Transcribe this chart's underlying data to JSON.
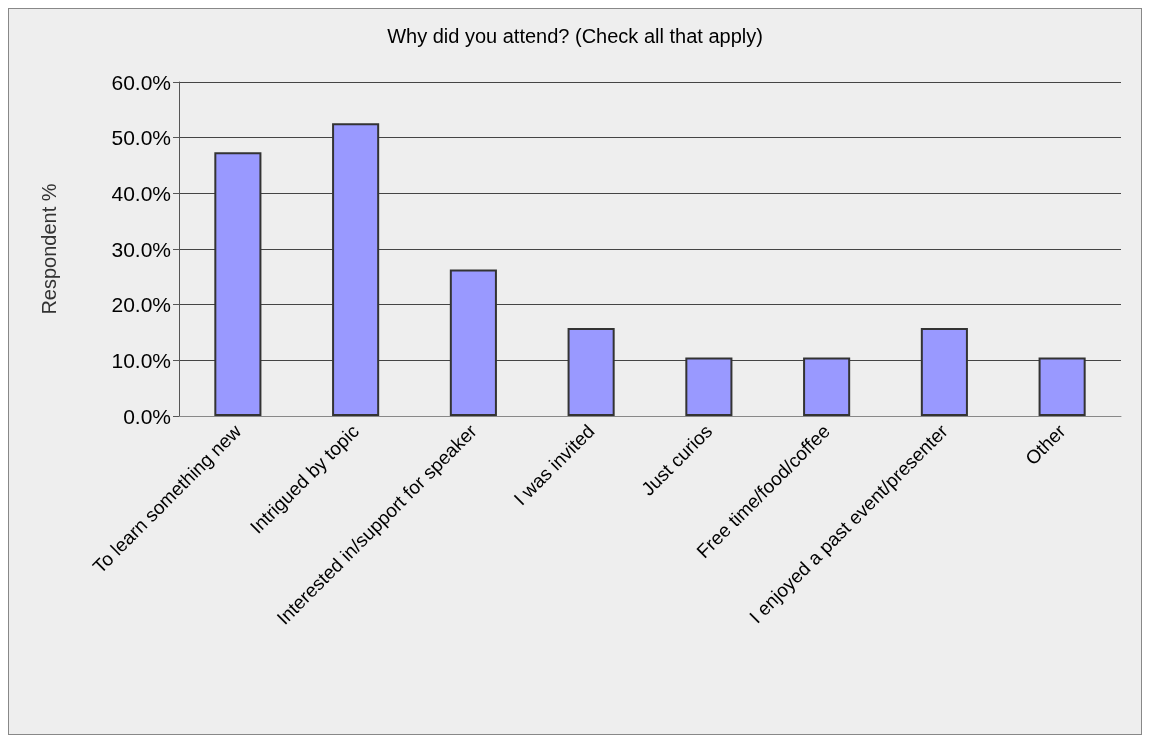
{
  "chart_data": {
    "type": "bar",
    "title": "Why did you attend? (Check all that apply)",
    "ylabel": "Respondent %",
    "categories": [
      "To learn something new",
      "Intrigued by topic",
      "Interested in/support for speaker",
      "I was invited",
      "Just curios",
      "Free time/food/coffee",
      "I enjoyed a past event/presenter",
      "Other"
    ],
    "values": [
      47.4,
      52.6,
      26.3,
      15.8,
      10.5,
      10.5,
      15.8,
      10.5
    ],
    "color": "#9999ff",
    "ylim": [
      0,
      60
    ],
    "yticks": [
      {
        "value": 0,
        "label": "0.0%"
      },
      {
        "value": 10,
        "label": "10.0%"
      },
      {
        "value": 20,
        "label": "20.0%"
      },
      {
        "value": 30,
        "label": "30.0%"
      },
      {
        "value": 40,
        "label": "40.0%"
      },
      {
        "value": 50,
        "label": "50.0%"
      },
      {
        "value": 60,
        "label": "60.0%"
      }
    ],
    "grid": "y"
  }
}
